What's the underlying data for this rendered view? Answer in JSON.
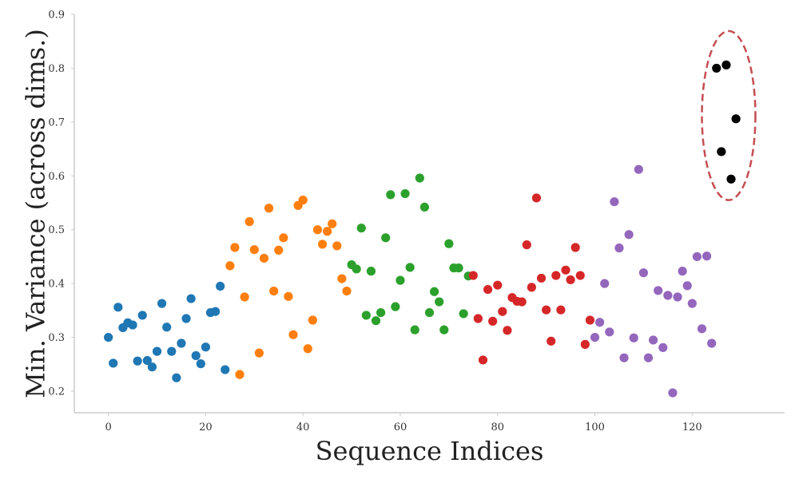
{
  "chart_data": {
    "type": "scatter",
    "xlabel": "Sequence Indices",
    "ylabel": "Min. Variance (across dims.)",
    "xlim": [
      -7,
      139
    ],
    "ylim": [
      0.16,
      0.9
    ],
    "xticks": [
      0,
      20,
      40,
      60,
      80,
      100,
      120
    ],
    "yticks": [
      0.2,
      0.3,
      0.4,
      0.5,
      0.6,
      0.7,
      0.8,
      0.9
    ],
    "grid": false,
    "series": [
      {
        "color": "#1f77b4",
        "x": [
          0,
          1,
          2,
          3,
          4,
          5,
          6,
          7,
          8,
          9,
          10,
          11,
          12,
          13,
          14,
          15,
          16,
          17,
          18,
          19,
          20,
          21,
          22,
          23,
          24
        ],
        "y": [
          0.3,
          0.252,
          0.356,
          0.318,
          0.327,
          0.323,
          0.256,
          0.341,
          0.257,
          0.245,
          0.274,
          0.363,
          0.319,
          0.274,
          0.225,
          0.289,
          0.335,
          0.372,
          0.266,
          0.251,
          0.282,
          0.346,
          0.348,
          0.395,
          0.24
        ]
      },
      {
        "color": "#ff7f0e",
        "x": [
          25,
          26,
          27,
          28,
          29,
          30,
          31,
          32,
          33,
          34,
          35,
          36,
          37,
          38,
          39,
          40,
          41,
          42,
          43,
          44,
          45,
          46,
          47,
          48,
          49
        ],
        "y": [
          0.433,
          0.467,
          0.231,
          0.375,
          0.515,
          0.463,
          0.271,
          0.447,
          0.54,
          0.386,
          0.462,
          0.485,
          0.376,
          0.305,
          0.545,
          0.555,
          0.279,
          0.332,
          0.5,
          0.473,
          0.497,
          0.511,
          0.47,
          0.409,
          0.386
        ]
      },
      {
        "color": "#2ca02c",
        "x": [
          50,
          51,
          52,
          53,
          54,
          55,
          56,
          57,
          58,
          59,
          60,
          61,
          62,
          63,
          64,
          65,
          66,
          67,
          68,
          69,
          70,
          71,
          72,
          73,
          74
        ],
        "y": [
          0.435,
          0.427,
          0.503,
          0.341,
          0.423,
          0.331,
          0.346,
          0.485,
          0.565,
          0.357,
          0.406,
          0.567,
          0.43,
          0.314,
          0.596,
          0.542,
          0.346,
          0.385,
          0.366,
          0.314,
          0.474,
          0.429,
          0.429,
          0.344,
          0.414
        ]
      },
      {
        "color": "#d62728",
        "x": [
          75,
          76,
          77,
          78,
          79,
          80,
          81,
          82,
          83,
          84,
          85,
          86,
          87,
          88,
          89,
          90,
          91,
          92,
          93,
          94,
          95,
          96,
          97,
          98,
          99
        ],
        "y": [
          0.415,
          0.335,
          0.258,
          0.389,
          0.33,
          0.397,
          0.348,
          0.313,
          0.374,
          0.367,
          0.366,
          0.472,
          0.393,
          0.559,
          0.41,
          0.351,
          0.293,
          0.415,
          0.351,
          0.425,
          0.407,
          0.467,
          0.415,
          0.287,
          0.332
        ]
      },
      {
        "color": "#9467bd",
        "x": [
          100,
          101,
          102,
          103,
          104,
          105,
          106,
          107,
          108,
          109,
          110,
          111,
          112,
          113,
          114,
          115,
          116,
          117,
          118,
          119,
          120,
          121,
          122,
          123,
          124
        ],
        "y": [
          0.3,
          0.328,
          0.4,
          0.31,
          0.552,
          0.466,
          0.262,
          0.491,
          0.299,
          0.612,
          0.42,
          0.262,
          0.295,
          0.387,
          0.281,
          0.378,
          0.197,
          0.375,
          0.423,
          0.396,
          0.363,
          0.45,
          0.316,
          0.451,
          0.289
        ]
      },
      {
        "color": "#000000",
        "x": [
          125,
          126,
          127,
          128,
          129
        ],
        "y": [
          0.8,
          0.645,
          0.806,
          0.594,
          0.706
        ]
      }
    ],
    "annotations": [
      {
        "type": "ellipse",
        "cx": 127.5,
        "cy": 0.712,
        "rx": 5.5,
        "ry": 0.157,
        "color": "#c44e52",
        "style": "dashed"
      }
    ]
  }
}
